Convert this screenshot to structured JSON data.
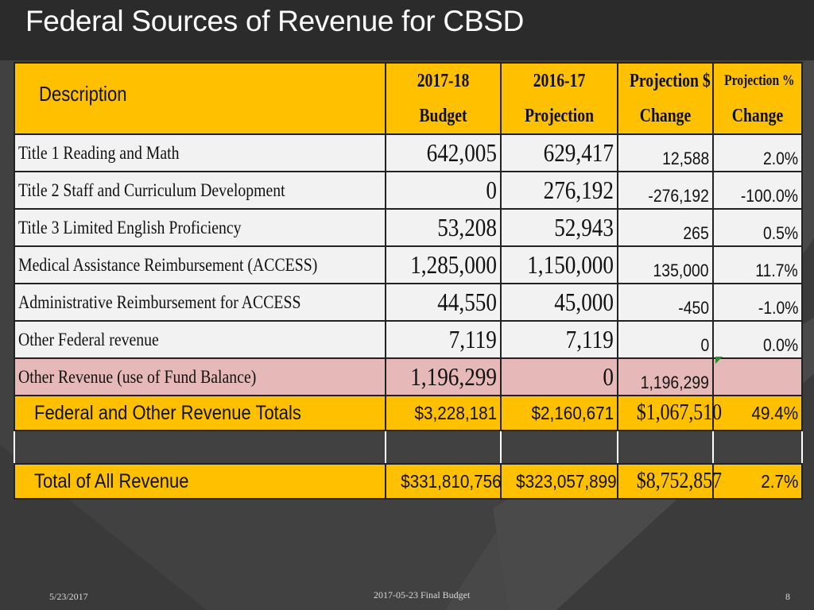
{
  "slide": {
    "title": "Federal Sources of Revenue for CBSD",
    "footer_date": "5/23/2017",
    "footer_center": "2017-05-23 Final Budget",
    "page_number": "8"
  },
  "colors": {
    "header_bg": "#ffc000",
    "row_bg": "#f2f2f2",
    "highlight_row_bg": "#e6b9b8",
    "slide_bg": "#414141"
  },
  "table": {
    "headers": {
      "description": "Description",
      "col1_l1": "2017-18",
      "col1_l2": "Budget",
      "col2_l1": "2016-17",
      "col2_l2": "Projection",
      "col3_l1": "Projection $",
      "col3_l2": "Change",
      "col4_l1": "Projection  %",
      "col4_l2": "Change"
    },
    "rows": [
      {
        "description": "Title 1 Reading and Math",
        "budget": "642,005",
        "projection": "629,417",
        "change": "12,588",
        "pct": "2.0%"
      },
      {
        "description": "Title 2  Staff and Curriculum Development",
        "budget": "0",
        "projection": "276,192",
        "change": "-276,192",
        "pct": "-100.0%"
      },
      {
        "description": "Title 3 Limited English Proficiency",
        "budget": "53,208",
        "projection": "52,943",
        "change": "265",
        "pct": "0.5%"
      },
      {
        "description": "Medical Assistance Reimbursement  (ACCESS)",
        "budget": "1,285,000",
        "projection": "1,150,000",
        "change": "135,000",
        "pct": "11.7%"
      },
      {
        "description": "Administrative Reimbursement for ACCESS",
        "budget": "44,550",
        "projection": "45,000",
        "change": "-450",
        "pct": "-1.0%"
      },
      {
        "description": "Other Federal revenue",
        "budget": "7,119",
        "projection": "7,119",
        "change": "0",
        "pct": "0.0%"
      },
      {
        "description": "Other Revenue (use of Fund Balance)",
        "budget": "1,196,299",
        "projection": "0",
        "change": "1,196,299",
        "pct": ""
      }
    ],
    "totals": {
      "label": "Federal and Other Revenue Totals",
      "budget": "$3,228,181",
      "projection": "$2,160,671",
      "change": "$1,067,510",
      "pct": "49.4%"
    },
    "all_totals": {
      "label": "Total of All Revenue",
      "budget": "$331,810,756",
      "projection": "$323,057,899",
      "change": "$8,752,857",
      "pct": "2.7%"
    }
  }
}
